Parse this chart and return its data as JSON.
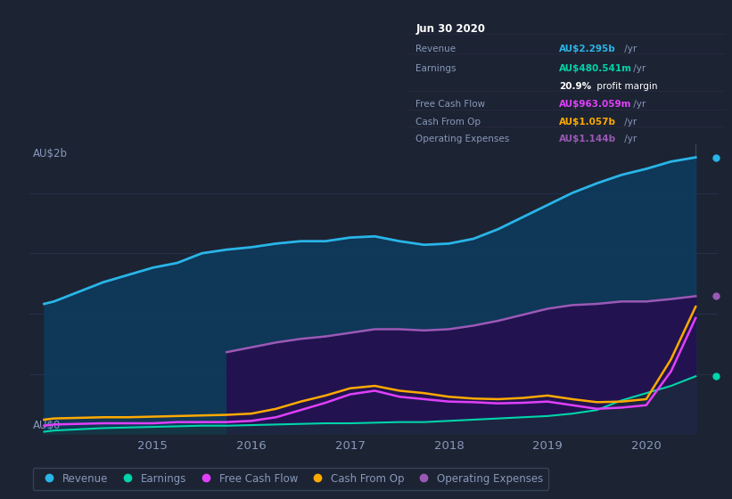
{
  "background_color": "#1c2333",
  "plot_bg_color": "#1c2333",
  "grid_color": "#2a3550",
  "text_color": "#8899bb",
  "ylabel_2b": "AU$2b",
  "ylabel_0": "AU$0",
  "x_years": [
    2013.9,
    2014.0,
    2014.25,
    2014.5,
    2014.75,
    2015.0,
    2015.25,
    2015.5,
    2015.75,
    2016.0,
    2016.25,
    2016.5,
    2016.75,
    2017.0,
    2017.25,
    2017.5,
    2017.75,
    2018.0,
    2018.25,
    2018.5,
    2018.75,
    2019.0,
    2019.25,
    2019.5,
    2019.75,
    2020.0,
    2020.25,
    2020.5
  ],
  "revenue": [
    1.08,
    1.1,
    1.18,
    1.26,
    1.32,
    1.38,
    1.42,
    1.5,
    1.53,
    1.55,
    1.58,
    1.6,
    1.6,
    1.63,
    1.64,
    1.6,
    1.57,
    1.58,
    1.62,
    1.7,
    1.8,
    1.9,
    2.0,
    2.08,
    2.15,
    2.2,
    2.26,
    2.295
  ],
  "earnings": [
    0.02,
    0.03,
    0.04,
    0.05,
    0.055,
    0.06,
    0.065,
    0.07,
    0.07,
    0.075,
    0.08,
    0.085,
    0.09,
    0.09,
    0.095,
    0.1,
    0.1,
    0.11,
    0.12,
    0.13,
    0.14,
    0.15,
    0.17,
    0.2,
    0.28,
    0.34,
    0.4,
    0.48
  ],
  "free_cash_flow": [
    0.07,
    0.08,
    0.085,
    0.09,
    0.09,
    0.09,
    0.1,
    0.1,
    0.1,
    0.11,
    0.14,
    0.2,
    0.26,
    0.33,
    0.36,
    0.31,
    0.29,
    0.27,
    0.265,
    0.255,
    0.26,
    0.27,
    0.24,
    0.21,
    0.22,
    0.24,
    0.52,
    0.963
  ],
  "cash_from_op": [
    0.12,
    0.13,
    0.135,
    0.14,
    0.14,
    0.145,
    0.15,
    0.155,
    0.16,
    0.17,
    0.21,
    0.27,
    0.32,
    0.38,
    0.4,
    0.36,
    0.34,
    0.31,
    0.295,
    0.29,
    0.3,
    0.32,
    0.29,
    0.265,
    0.27,
    0.29,
    0.62,
    1.057
  ],
  "operating_expenses_x": [
    2015.75,
    2016.0,
    2016.25,
    2016.5,
    2016.75,
    2017.0,
    2017.25,
    2017.5,
    2017.75,
    2018.0,
    2018.25,
    2018.5,
    2018.75,
    2019.0,
    2019.25,
    2019.5,
    2019.75,
    2020.0,
    2020.25,
    2020.5
  ],
  "operating_expenses": [
    0.68,
    0.72,
    0.76,
    0.79,
    0.81,
    0.84,
    0.87,
    0.87,
    0.86,
    0.87,
    0.9,
    0.94,
    0.99,
    1.04,
    1.07,
    1.08,
    1.1,
    1.1,
    1.12,
    1.144
  ],
  "revenue_color": "#29b5e8",
  "revenue_fill": "#0d3a5c",
  "earnings_color": "#00d4aa",
  "earnings_fill": "#0a2a2a",
  "free_cash_flow_color": "#e040fb",
  "cash_from_op_color": "#ffaa00",
  "operating_expenses_color": "#9b59b6",
  "operating_expenses_fill": "#2d1060",
  "info_box_bg": "#08090f",
  "info_box_border": "#3a3a55",
  "info_title": "Jun 30 2020",
  "info_revenue_label": "Revenue",
  "info_revenue_val": "AU$2.295b /yr",
  "info_earnings_label": "Earnings",
  "info_earnings_val": "AU$480.541m /yr",
  "info_margin": "20.9% profit margin",
  "info_fcf_label": "Free Cash Flow",
  "info_fcf_val": "AU$963.059m /yr",
  "info_cashop_label": "Cash From Op",
  "info_cashop_val": "AU$1.057b /yr",
  "info_opex_label": "Operating Expenses",
  "info_opex_val": "AU$1.144b /yr",
  "legend_items": [
    "Revenue",
    "Earnings",
    "Free Cash Flow",
    "Cash From Op",
    "Operating Expenses"
  ],
  "legend_colors": [
    "#29b5e8",
    "#00d4aa",
    "#e040fb",
    "#ffaa00",
    "#9b59b6"
  ],
  "ylim": [
    0,
    2.4
  ],
  "xlim_start": 2013.75,
  "xlim_end": 2020.72
}
